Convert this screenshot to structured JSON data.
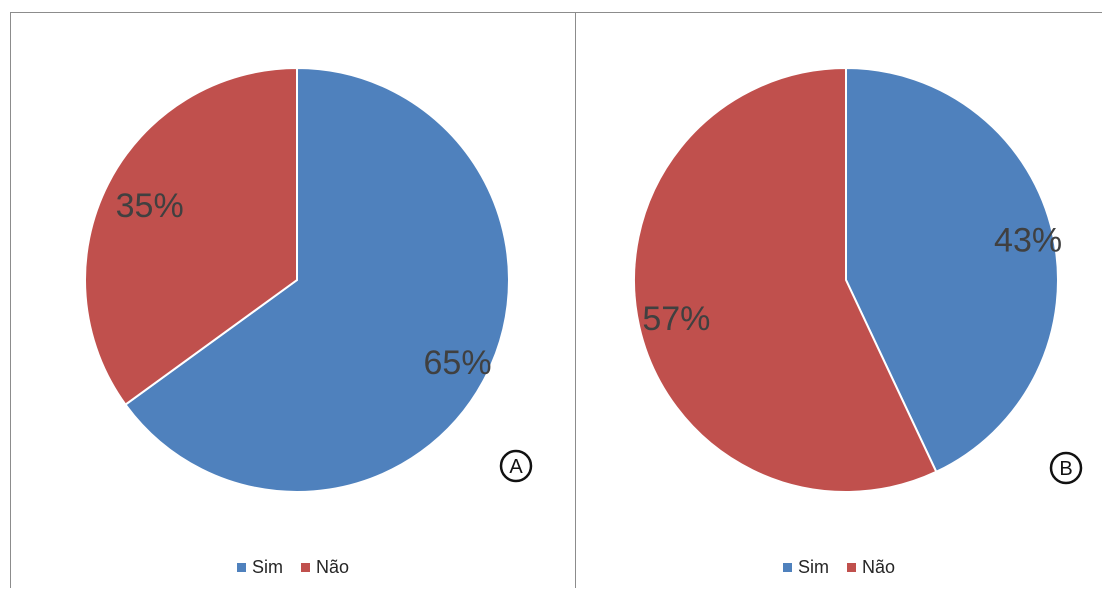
{
  "colors": {
    "Sim": "#4f81bd",
    "Não": "#c0504d"
  },
  "legend": {
    "sim": "Sim",
    "nao": "Não"
  },
  "chart_data": [
    {
      "type": "pie",
      "badge": "A",
      "categories": [
        "Sim",
        "Não"
      ],
      "values": [
        65,
        35
      ],
      "labels": [
        "65%",
        "35%"
      ],
      "legend_position": "bottom"
    },
    {
      "type": "pie",
      "badge": "B",
      "categories": [
        "Sim",
        "Não"
      ],
      "values": [
        43,
        57
      ],
      "labels": [
        "43%",
        "57%"
      ],
      "legend_position": "bottom"
    }
  ]
}
